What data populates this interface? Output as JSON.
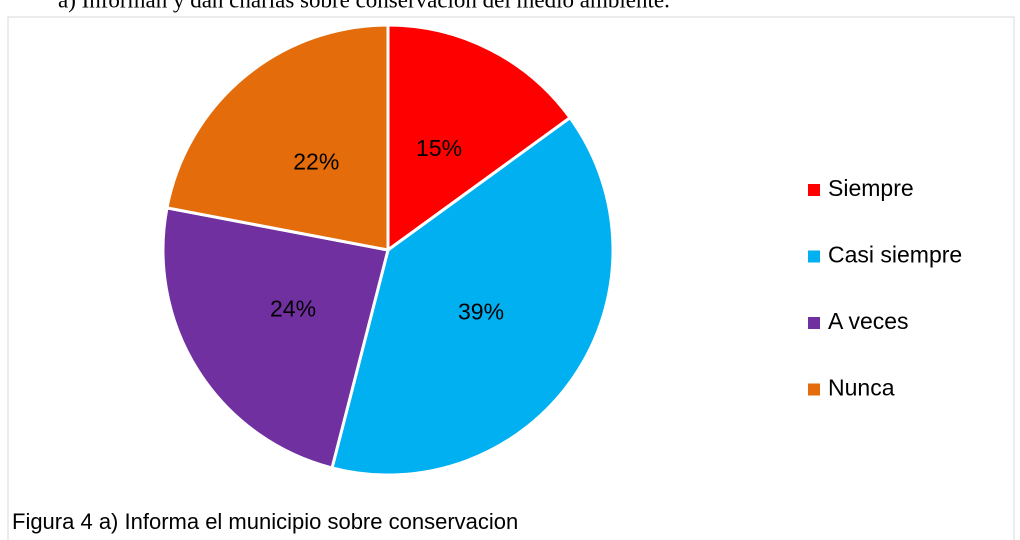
{
  "heading": "a)   Informan y dan charlas sobre conservación del medio ambiente.",
  "chart_data": {
    "type": "pie",
    "caption": "Figura 4 a) Informa el municipio sobre conservacion",
    "categories": [
      "Siempre",
      "Casi siempre",
      "A veces",
      "Nunca"
    ],
    "values": [
      15,
      39,
      24,
      22
    ],
    "value_labels": [
      "15%",
      "39%",
      "24%",
      "22%"
    ],
    "colors": [
      "#ff0000",
      "#00b0f0",
      "#7030a0",
      "#e46c0a"
    ],
    "legend": "right"
  }
}
